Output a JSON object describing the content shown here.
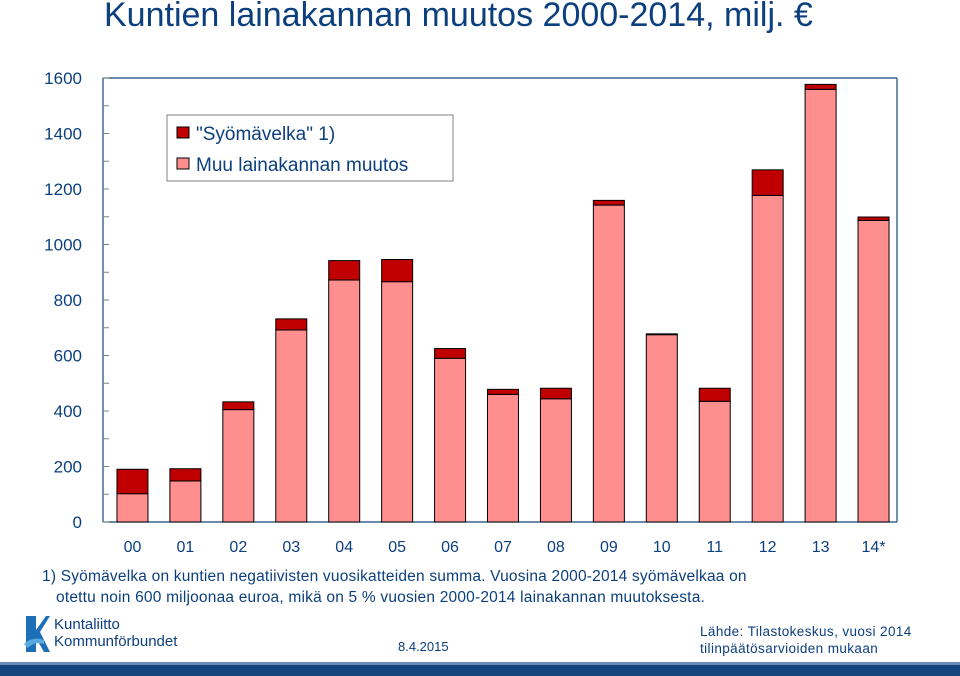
{
  "title": "Kuntien lainakannan muutos 2000-2014, milj. €",
  "chart_data": {
    "type": "bar",
    "stacked": true,
    "categories": [
      "00",
      "01",
      "02",
      "03",
      "04",
      "05",
      "06",
      "07",
      "08",
      "09",
      "10",
      "11",
      "12",
      "13",
      "14*"
    ],
    "series": [
      {
        "name": "Muu lainakannan muutos",
        "color": "#ff8f8f",
        "values": [
          102,
          148,
          405,
          692,
          872,
          866,
          590,
          460,
          444,
          1142,
          675,
          435,
          1177,
          1559,
          1087
        ]
      },
      {
        "name": "\"Syömävelka\" 1)",
        "color": "#c00000",
        "values": [
          88,
          44,
          28,
          40,
          70,
          80,
          35,
          18,
          38,
          17,
          3,
          47,
          92,
          18,
          12
        ]
      }
    ],
    "yticks": [
      "0",
      "200",
      "400",
      "600",
      "800",
      "1000",
      "1200",
      "1400",
      "1600"
    ],
    "ylim": [
      0,
      1600
    ],
    "legend_position": "top-left",
    "grid": false
  },
  "footnote": {
    "line1": "1) Syömävelka on kuntien negatiivisten vuosikatteiden summa. Vuosina 2000-2014 syömävelkaa on",
    "line2": "otettu  noin 600 miljoonaa euroa, mikä on 5 % vuosien 2000-2014 lainakannan muutoksesta."
  },
  "logo": {
    "line1": "Kuntaliitto",
    "line2": "Kommunförbundet"
  },
  "date": "8.4.2015",
  "source": {
    "line1": "Lähde: Tilastokeskus, vuosi 2014",
    "line2": "tilinpäätösarvioiden mukaan"
  }
}
